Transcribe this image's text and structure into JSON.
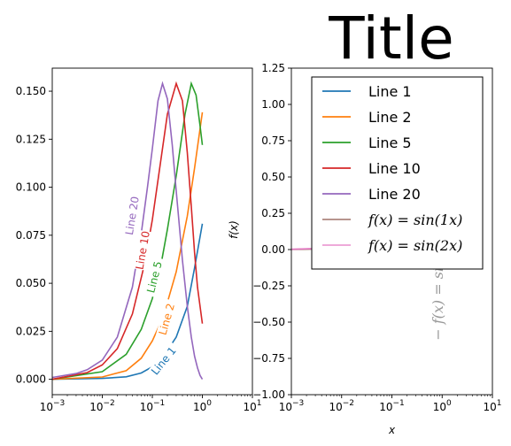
{
  "figure_title": "Title",
  "colors": {
    "line_1": "#1f77b4",
    "line_2": "#ff7f0e",
    "line_5": "#2ca02c",
    "line_10": "#d62728",
    "line_20": "#9467bd",
    "sin1": "#8c564b",
    "sin2": "#e377c2",
    "ghost_text": "#999999"
  },
  "chart_data": [
    {
      "type": "line",
      "xscale": "log",
      "xlim": [
        0.001,
        10
      ],
      "ylim": [
        -0.008,
        0.162
      ],
      "xticks": [
        "10^-3",
        "10^-2",
        "10^-1",
        "10^0",
        "10^1"
      ],
      "yticks": [
        "0.000",
        "0.025",
        "0.050",
        "0.075",
        "0.100",
        "0.125",
        "0.150"
      ],
      "series": [
        {
          "name": "Line 1",
          "color_key": "line_1",
          "x": [
            0.001,
            0.01,
            0.03,
            0.06,
            0.1,
            0.15,
            0.2,
            0.3,
            0.5,
            0.7,
            1.0
          ],
          "y": [
            0.0,
            0.0005,
            0.0013,
            0.0033,
            0.0065,
            0.011,
            0.015,
            0.022,
            0.038,
            0.058,
            0.081
          ]
        },
        {
          "name": "Line 2",
          "color_key": "line_2",
          "x": [
            0.001,
            0.01,
            0.03,
            0.06,
            0.1,
            0.15,
            0.2,
            0.3,
            0.5,
            0.7,
            1.0
          ],
          "y": [
            0.0,
            0.0012,
            0.0045,
            0.011,
            0.02,
            0.03,
            0.04,
            0.056,
            0.085,
            0.11,
            0.139
          ]
        },
        {
          "name": "Line 5",
          "color_key": "line_5",
          "x": [
            0.001,
            0.01,
            0.03,
            0.06,
            0.1,
            0.15,
            0.2,
            0.3,
            0.45,
            0.6,
            0.75,
            0.9,
            1.0
          ],
          "y": [
            0.0,
            0.004,
            0.013,
            0.026,
            0.042,
            0.06,
            0.078,
            0.106,
            0.138,
            0.154,
            0.148,
            0.132,
            0.122
          ]
        },
        {
          "name": "Line 10",
          "color_key": "line_10",
          "x": [
            0.001,
            0.005,
            0.01,
            0.02,
            0.04,
            0.07,
            0.1,
            0.15,
            0.2,
            0.3,
            0.4,
            0.5,
            0.6,
            0.7,
            0.8,
            1.0
          ],
          "y": [
            0.0,
            0.0035,
            0.0075,
            0.016,
            0.034,
            0.06,
            0.083,
            0.115,
            0.138,
            0.154,
            0.145,
            0.118,
            0.09,
            0.066,
            0.048,
            0.029
          ]
        },
        {
          "name": "Line 20",
          "color_key": "line_20",
          "x": [
            0.001,
            0.003,
            0.005,
            0.01,
            0.02,
            0.04,
            0.06,
            0.08,
            0.1,
            0.13,
            0.16,
            0.2,
            0.25,
            0.3,
            0.4,
            0.5,
            0.6,
            0.7,
            0.8,
            0.9,
            1.0
          ],
          "y": [
            0.001,
            0.003,
            0.005,
            0.01,
            0.022,
            0.048,
            0.076,
            0.1,
            0.12,
            0.145,
            0.154,
            0.146,
            0.122,
            0.098,
            0.062,
            0.038,
            0.022,
            0.012,
            0.006,
            0.002,
            0.0
          ]
        }
      ],
      "inline_labels": [
        {
          "text": "Line 1",
          "series": "Line 1",
          "x": 0.18,
          "y": 0.009
        },
        {
          "text": "Line 2",
          "series": "Line 2",
          "x": 0.21,
          "y": 0.031
        },
        {
          "text": "Line 5",
          "series": "Line 5",
          "x": 0.12,
          "y": 0.053
        },
        {
          "text": "Line 10",
          "series": "Line 10",
          "x": 0.07,
          "y": 0.067
        },
        {
          "text": "Line 20",
          "series": "Line 20",
          "x": 0.043,
          "y": 0.085
        }
      ]
    },
    {
      "type": "line",
      "xscale": "log",
      "xlim": [
        0.001,
        10
      ],
      "ylim": [
        -1.0,
        1.25
      ],
      "xticks": [
        "10^-3",
        "10^-2",
        "10^-1",
        "10^0",
        "10^1"
      ],
      "yticks": [
        "-1.00",
        "-0.75",
        "-0.50",
        "-0.25",
        "0.00",
        "0.25",
        "0.50",
        "0.75",
        "1.00",
        "1.25"
      ],
      "xlabel": "x",
      "ylabel": "f(x)",
      "legend_position": "upper right",
      "legend": [
        {
          "label": "Line 1",
          "color_key": "line_1",
          "math": false
        },
        {
          "label": "Line 2",
          "color_key": "line_2",
          "math": false
        },
        {
          "label": "Line 5",
          "color_key": "line_5",
          "math": false
        },
        {
          "label": "Line 10",
          "color_key": "line_10",
          "math": false
        },
        {
          "label": "Line 20",
          "color_key": "line_20",
          "math": false
        },
        {
          "label": "f(x) = sin(1x)",
          "color_key": "sin1",
          "math": true
        },
        {
          "label": "f(x) = sin(2x)",
          "color_key": "sin2",
          "math": true
        }
      ],
      "series": [
        {
          "name": "f(x) = sin(1x)",
          "color_key": "sin1",
          "x": [
            0.001,
            0.005,
            0.01,
            0.02,
            0.03
          ],
          "y": [
            0.001,
            0.005,
            0.01,
            0.02,
            0.03
          ]
        },
        {
          "name": "f(x) = sin(2x)",
          "color_key": "sin2",
          "x": [
            0.001,
            0.005,
            0.01,
            0.02,
            0.03
          ],
          "y": [
            0.002,
            0.01,
            0.02,
            0.04,
            0.06
          ]
        }
      ],
      "overflow_text": "− f(x) = sin(4"
    }
  ]
}
